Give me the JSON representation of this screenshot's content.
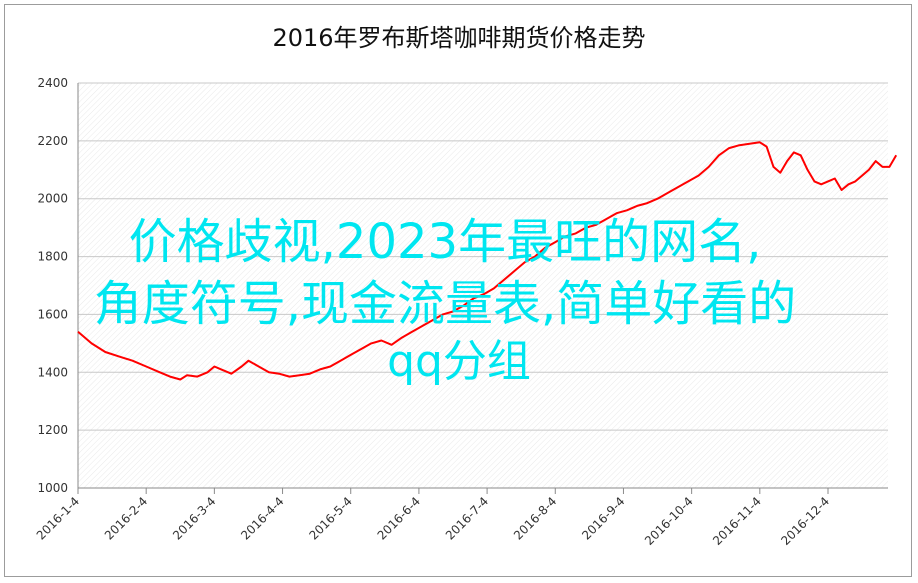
{
  "chart_data": {
    "type": "line",
    "title": "2016年罗布斯塔咖啡期货价格走势",
    "ylim": [
      1000,
      2400
    ],
    "yticks": [
      1000,
      1200,
      1400,
      1600,
      1800,
      2000,
      2200,
      2400
    ],
    "xticks": [
      "2016-1-4",
      "2016-2-4",
      "2016-3-4",
      "2016-4-4",
      "2016-5-4",
      "2016-6-4",
      "2016-7-4",
      "2016-8-4",
      "2016-9-4",
      "2016-10-4",
      "2016-11-4",
      "2016-12-4"
    ],
    "grid": true,
    "series": [
      {
        "color": "#ff0000",
        "points": [
          [
            0,
            1540
          ],
          [
            0.2,
            1500
          ],
          [
            0.4,
            1470
          ],
          [
            0.6,
            1455
          ],
          [
            0.8,
            1440
          ],
          [
            1.0,
            1420
          ],
          [
            1.2,
            1400
          ],
          [
            1.35,
            1385
          ],
          [
            1.5,
            1375
          ],
          [
            1.6,
            1390
          ],
          [
            1.75,
            1385
          ],
          [
            1.9,
            1400
          ],
          [
            2.0,
            1420
          ],
          [
            2.1,
            1410
          ],
          [
            2.25,
            1395
          ],
          [
            2.4,
            1420
          ],
          [
            2.5,
            1440
          ],
          [
            2.65,
            1420
          ],
          [
            2.8,
            1400
          ],
          [
            2.95,
            1395
          ],
          [
            3.1,
            1385
          ],
          [
            3.25,
            1390
          ],
          [
            3.4,
            1395
          ],
          [
            3.55,
            1410
          ],
          [
            3.7,
            1420
          ],
          [
            3.85,
            1440
          ],
          [
            4.0,
            1460
          ],
          [
            4.15,
            1480
          ],
          [
            4.3,
            1500
          ],
          [
            4.45,
            1510
          ],
          [
            4.6,
            1495
          ],
          [
            4.75,
            1520
          ],
          [
            4.9,
            1540
          ],
          [
            5.05,
            1560
          ],
          [
            5.2,
            1580
          ],
          [
            5.35,
            1600
          ],
          [
            5.5,
            1610
          ],
          [
            5.65,
            1630
          ],
          [
            5.8,
            1655
          ],
          [
            5.95,
            1670
          ],
          [
            6.1,
            1690
          ],
          [
            6.25,
            1720
          ],
          [
            6.4,
            1750
          ],
          [
            6.55,
            1780
          ],
          [
            6.7,
            1800
          ],
          [
            6.85,
            1830
          ],
          [
            7.0,
            1850
          ],
          [
            7.15,
            1870
          ],
          [
            7.3,
            1880
          ],
          [
            7.45,
            1900
          ],
          [
            7.6,
            1910
          ],
          [
            7.75,
            1930
          ],
          [
            7.9,
            1950
          ],
          [
            8.05,
            1960
          ],
          [
            8.2,
            1975
          ],
          [
            8.35,
            1985
          ],
          [
            8.5,
            2000
          ],
          [
            8.65,
            2020
          ],
          [
            8.8,
            2040
          ],
          [
            8.95,
            2060
          ],
          [
            9.1,
            2080
          ],
          [
            9.25,
            2110
          ],
          [
            9.4,
            2150
          ],
          [
            9.55,
            2175
          ],
          [
            9.7,
            2185
          ],
          [
            9.85,
            2190
          ],
          [
            10.0,
            2195
          ],
          [
            10.1,
            2180
          ],
          [
            10.2,
            2110
          ],
          [
            10.3,
            2090
          ],
          [
            10.4,
            2130
          ],
          [
            10.5,
            2160
          ],
          [
            10.6,
            2150
          ],
          [
            10.7,
            2100
          ],
          [
            10.8,
            2060
          ],
          [
            10.9,
            2050
          ],
          [
            11.0,
            2060
          ],
          [
            11.1,
            2070
          ],
          [
            11.2,
            2030
          ],
          [
            11.3,
            2050
          ],
          [
            11.4,
            2060
          ],
          [
            11.5,
            2080
          ],
          [
            11.6,
            2100
          ],
          [
            11.7,
            2130
          ],
          [
            11.8,
            2110
          ],
          [
            11.9,
            2110
          ],
          [
            12.0,
            2150
          ]
        ]
      }
    ]
  },
  "overlay": {
    "line1": "价格歧视,2023年最旺的网名,",
    "line2": "角度符号,现金流量表,简单好看的",
    "line3": "qq分组"
  }
}
